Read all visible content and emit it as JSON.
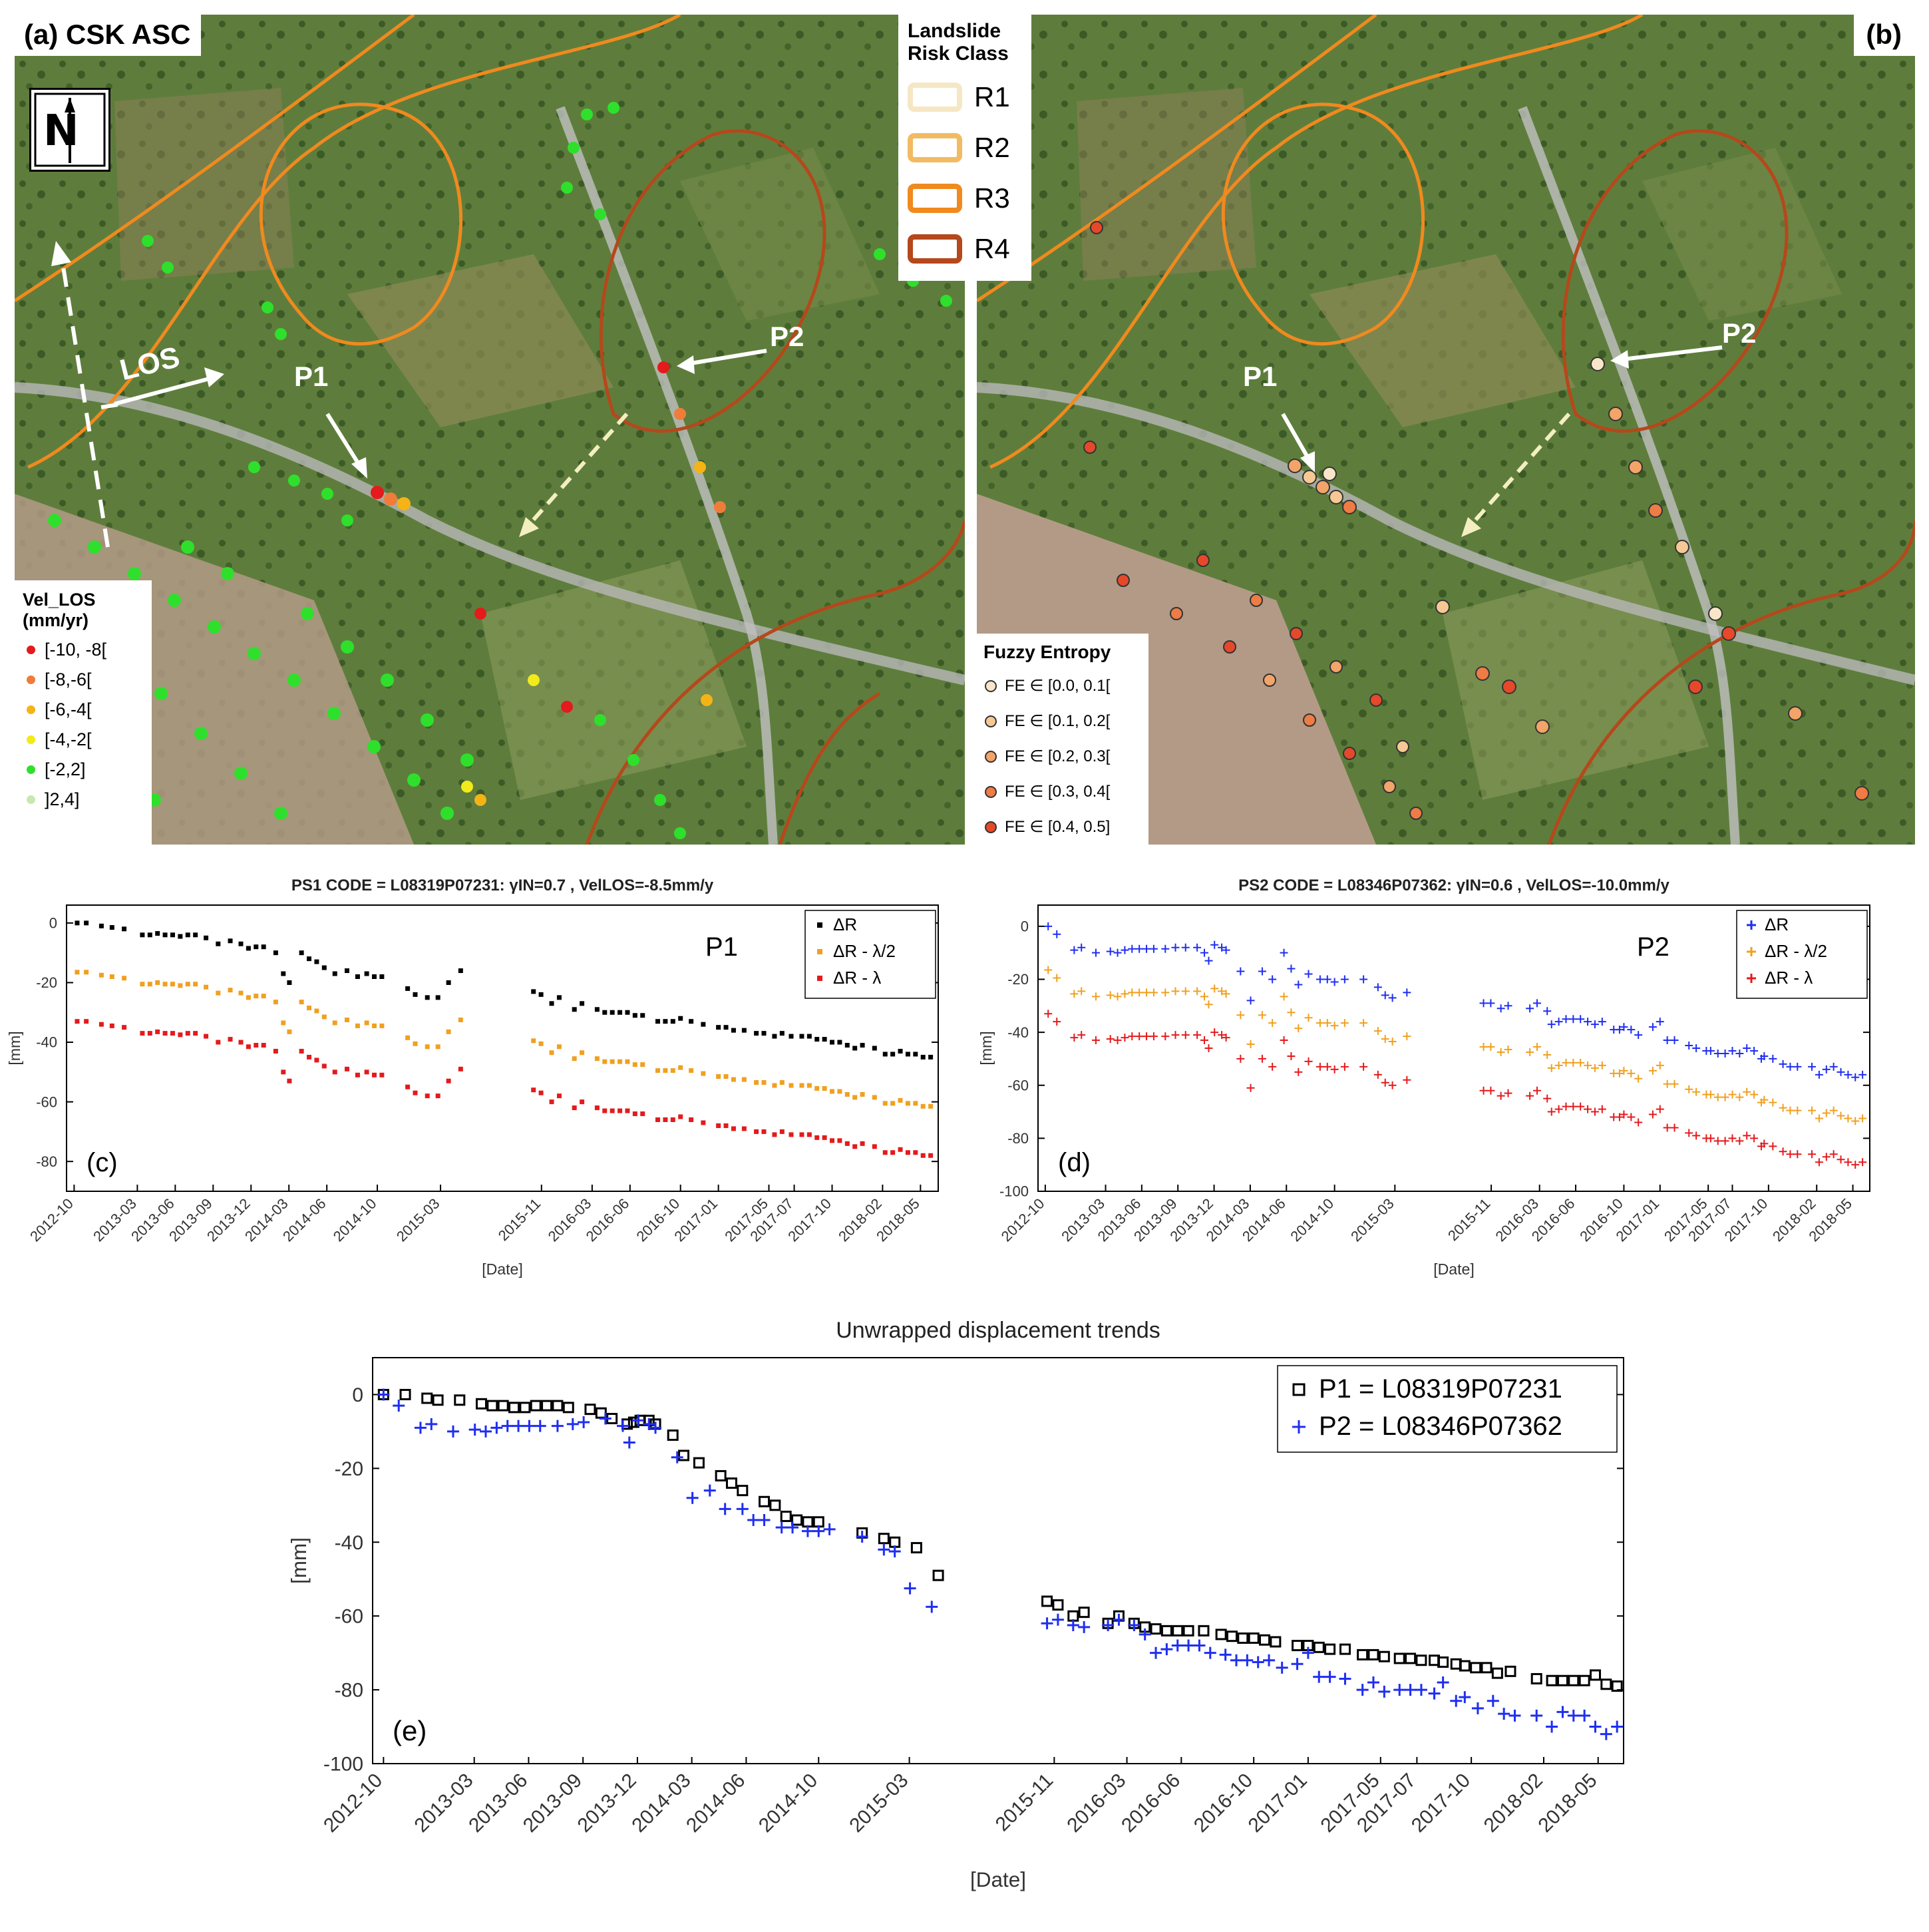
{
  "map_a": {
    "label": "(a) CSK ASC",
    "north": "N",
    "los": "LOS",
    "p1": "P1",
    "p2": "P2",
    "vel_title_1": "Vel_LOS",
    "vel_title_2": "(mm/yr)",
    "vel_legend": [
      {
        "label": "[-10, -8[",
        "color": "#e41a1c"
      },
      {
        "label": "[-8,-6[",
        "color": "#f07c3a"
      },
      {
        "label": "[-6,-4[",
        "color": "#f5b316"
      },
      {
        "label": "[-4,-2[",
        "color": "#f2ea1a"
      },
      {
        "label": "[-2,2]",
        "color": "#2ee02b"
      },
      {
        "label": "]2,4]",
        "color": "#c8e8b0"
      }
    ]
  },
  "map_b": {
    "label": "(b)",
    "p1": "P1",
    "p2": "P2",
    "fe_title": "Fuzzy Entropy",
    "fe_legend": [
      {
        "label": "FE ∈ [0.0, 0.1[",
        "color": "#f8e6c8"
      },
      {
        "label": "FE ∈ [0.1, 0.2[",
        "color": "#f6c994"
      },
      {
        "label": "FE ∈ [0.2, 0.3[",
        "color": "#f3a468"
      },
      {
        "label": "FE ∈ [0.3, 0.4[",
        "color": "#ee7c45"
      },
      {
        "label": "FE ∈ [0.4, 0.5]",
        "color": "#e5492a"
      }
    ]
  },
  "risk_legend": {
    "title_1": "Landslide",
    "title_2": "Risk Class",
    "items": [
      {
        "label": "R1",
        "color": "#f6e7c4"
      },
      {
        "label": "R2",
        "color": "#f2bb62"
      },
      {
        "label": "R3",
        "color": "#f08a1e"
      },
      {
        "label": "R4",
        "color": "#b5481c"
      }
    ]
  },
  "chart_data": [
    {
      "id": "c",
      "type": "scatter",
      "title": "PS1 CODE = L08319P07231:  γIN=0.7 , VelLOS=-8.5mm/y",
      "panel_label": "(c)",
      "point_label": "P1",
      "xlabel": "[Date]",
      "ylabel": "[mm]",
      "ylim": [
        -90,
        6
      ],
      "yticks": [
        "0",
        "-20",
        "-40",
        "-60",
        "-80"
      ],
      "xticks": [
        "2012-10",
        "2013-03",
        "2013-06",
        "2013-09",
        "2013-12",
        "2014-03",
        "2014-06",
        "2014-10",
        "2015-03",
        "2015-11",
        "2016-03",
        "2016-06",
        "2016-10",
        "2017-01",
        "2017-05",
        "2017-07",
        "2017-10",
        "2018-02",
        "2018-05"
      ],
      "xtick_dates": [
        2012.75,
        2013.167,
        2013.417,
        2013.667,
        2013.917,
        2014.167,
        2014.417,
        2014.75,
        2015.167,
        2015.833,
        2016.167,
        2016.417,
        2016.75,
        2017.0,
        2017.333,
        2017.5,
        2017.75,
        2018.083,
        2018.333
      ],
      "xlim": [
        2012.7,
        2018.45
      ],
      "marker": "square",
      "series": [
        {
          "name": "ΔR",
          "color": "#000000",
          "offset": 0
        },
        {
          "name": "ΔR - λ/2",
          "color": "#f0a020",
          "offset": -16.5
        },
        {
          "name": "ΔR - λ",
          "color": "#e41a1c",
          "offset": -33
        }
      ],
      "base": {
        "dates": [
          2012.77,
          2012.83,
          2012.93,
          2013.0,
          2013.08,
          2013.2,
          2013.25,
          2013.3,
          2013.35,
          2013.4,
          2013.45,
          2013.5,
          2013.55,
          2013.62,
          2013.7,
          2013.78,
          2013.85,
          2013.9,
          2013.95,
          2014.0,
          2014.08,
          2014.13,
          2014.17,
          2014.25,
          2014.3,
          2014.35,
          2014.4,
          2014.47,
          2014.55,
          2014.62,
          2014.68,
          2014.73,
          2014.78,
          2014.95,
          2015.0,
          2015.08,
          2015.15,
          2015.22,
          2015.3,
          2015.78,
          2015.83,
          2015.9,
          2015.95,
          2016.05,
          2016.1,
          2016.2,
          2016.25,
          2016.3,
          2016.35,
          2016.4,
          2016.45,
          2016.5,
          2016.6,
          2016.65,
          2016.7,
          2016.75,
          2016.82,
          2016.9,
          2017.0,
          2017.05,
          2017.1,
          2017.17,
          2017.25,
          2017.3,
          2017.37,
          2017.42,
          2017.48,
          2017.55,
          2017.6,
          2017.65,
          2017.7,
          2017.75,
          2017.8,
          2017.85,
          2017.9,
          2017.95,
          2018.03,
          2018.1,
          2018.15,
          2018.2,
          2018.25,
          2018.3,
          2018.35,
          2018.4
        ],
        "values": [
          0,
          0,
          -1,
          -1.5,
          -2,
          -4,
          -4,
          -3.5,
          -4,
          -4,
          -4.5,
          -4,
          -4,
          -5,
          -7,
          -6,
          -7,
          -8.5,
          -8,
          -8,
          -10,
          -17,
          -20,
          -10,
          -12,
          -13,
          -15,
          -17,
          -16,
          -18,
          -17,
          -18,
          -18,
          -22,
          -24,
          -25,
          -25,
          -20,
          -16,
          -23,
          -24,
          -27,
          -25,
          -29,
          -27,
          -29,
          -30,
          -30,
          -30,
          -30,
          -31,
          -31,
          -33,
          -33,
          -33,
          -32,
          -33,
          -34,
          -35,
          -35,
          -36,
          -36,
          -37,
          -37,
          -38,
          -37,
          -38,
          -38,
          -38,
          -39,
          -39,
          -40,
          -40,
          -41,
          -42,
          -41,
          -42,
          -44,
          -44,
          -43,
          -44,
          -44,
          -45,
          -45
        ]
      }
    },
    {
      "id": "d",
      "type": "scatter",
      "title": "PS2 CODE = L08346P07362:  γIN=0.6 , VelLOS=-10.0mm/y",
      "panel_label": "(d)",
      "point_label": "P2",
      "xlabel": "[Date]",
      "ylabel": "[mm]",
      "ylim": [
        -100,
        8
      ],
      "yticks": [
        "0",
        "-20",
        "-40",
        "-60",
        "-80",
        "-100"
      ],
      "xticks": [
        "2012-10",
        "2013-03",
        "2013-06",
        "2013-09",
        "2013-12",
        "2014-03",
        "2014-06",
        "2014-10",
        "2015-03",
        "2015-11",
        "2016-03",
        "2016-06",
        "2016-10",
        "2017-01",
        "2017-05",
        "2017-07",
        "2017-10",
        "2018-02",
        "2018-05"
      ],
      "xtick_dates": [
        2012.75,
        2013.167,
        2013.417,
        2013.667,
        2013.917,
        2014.167,
        2014.417,
        2014.75,
        2015.167,
        2015.833,
        2016.167,
        2016.417,
        2016.75,
        2017.0,
        2017.333,
        2017.5,
        2017.75,
        2018.083,
        2018.333
      ],
      "xlim": [
        2012.7,
        2018.45
      ],
      "marker": "plus",
      "series": [
        {
          "name": "ΔR",
          "color": "#1f2ef0",
          "offset": 0
        },
        {
          "name": "ΔR - λ/2",
          "color": "#f0a020",
          "offset": -16.5
        },
        {
          "name": "ΔR - λ",
          "color": "#e41a1c",
          "offset": -33
        }
      ],
      "base": {
        "dates": [
          2012.77,
          2012.83,
          2012.95,
          2013.0,
          2013.1,
          2013.2,
          2013.25,
          2013.3,
          2013.35,
          2013.4,
          2013.45,
          2013.5,
          2013.58,
          2013.65,
          2013.72,
          2013.8,
          2013.85,
          2013.88,
          2013.92,
          2013.97,
          2014.0,
          2014.1,
          2014.17,
          2014.25,
          2014.32,
          2014.4,
          2014.45,
          2014.5,
          2014.57,
          2014.65,
          2014.7,
          2014.75,
          2014.82,
          2014.95,
          2015.05,
          2015.1,
          2015.15,
          2015.25,
          2015.78,
          2015.83,
          2015.9,
          2015.95,
          2016.1,
          2016.15,
          2016.22,
          2016.25,
          2016.3,
          2016.35,
          2016.4,
          2016.45,
          2016.5,
          2016.55,
          2016.6,
          2016.68,
          2016.72,
          2016.75,
          2016.8,
          2016.85,
          2016.95,
          2017.0,
          2017.05,
          2017.1,
          2017.2,
          2017.25,
          2017.32,
          2017.35,
          2017.4,
          2017.45,
          2017.5,
          2017.55,
          2017.6,
          2017.65,
          2017.7,
          2017.72,
          2017.78,
          2017.85,
          2017.9,
          2017.95,
          2018.05,
          2018.1,
          2018.15,
          2018.2,
          2018.25,
          2018.3,
          2018.35,
          2018.4
        ],
        "values": [
          0,
          -3,
          -9,
          -8,
          -10,
          -9.5,
          -10,
          -9,
          -8.5,
          -8.5,
          -8.5,
          -8.5,
          -8.5,
          -8,
          -8,
          -8,
          -10,
          -13,
          -7,
          -8,
          -9,
          -17,
          -28,
          -17,
          -20,
          -10,
          -16,
          -22,
          -18,
          -20,
          -20,
          -21,
          -20,
          -20,
          -23,
          -26,
          -27,
          -25,
          -29,
          -29,
          -31,
          -30,
          -31,
          -29,
          -32,
          -37,
          -36,
          -35,
          -35,
          -35,
          -36,
          -37,
          -36,
          -39,
          -39,
          -38,
          -39,
          -41,
          -38,
          -36,
          -43,
          -43,
          -45,
          -46,
          -47,
          -47,
          -48,
          -48,
          -47,
          -48,
          -46,
          -47,
          -50,
          -49,
          -50,
          -52,
          -53,
          -53,
          -53,
          -56,
          -54,
          -53,
          -55,
          -56,
          -57,
          -56
        ]
      }
    },
    {
      "id": "e",
      "type": "scatter",
      "title": "Unwrapped displacement trends",
      "panel_label": "(e)",
      "xlabel": "[Date]",
      "ylabel": "[mm]",
      "ylim": [
        -100,
        10
      ],
      "yticks": [
        "0",
        "-20",
        "-40",
        "-60",
        "-80",
        "-100"
      ],
      "xticks": [
        "2012-10",
        "2013-03",
        "2013-06",
        "2013-09",
        "2013-12",
        "2014-03",
        "2014-06",
        "2014-10",
        "2015-03",
        "2015-11",
        "2016-03",
        "2016-06",
        "2016-10",
        "2017-01",
        "2017-05",
        "2017-07",
        "2017-10",
        "2018-02",
        "2018-05"
      ],
      "xtick_dates": [
        2012.75,
        2013.167,
        2013.417,
        2013.667,
        2013.917,
        2014.167,
        2014.417,
        2014.75,
        2015.167,
        2015.833,
        2016.167,
        2016.417,
        2016.75,
        2017.0,
        2017.333,
        2017.5,
        2017.75,
        2018.083,
        2018.333
      ],
      "xlim": [
        2012.7,
        2018.45
      ],
      "series": [
        {
          "name": "P1 = L08319P07231",
          "marker": "square",
          "color": "#000000",
          "dates": [
            2012.75,
            2012.85,
            2012.95,
            2013.0,
            2013.1,
            2013.2,
            2013.25,
            2013.3,
            2013.35,
            2013.4,
            2013.45,
            2013.5,
            2013.55,
            2013.6,
            2013.7,
            2013.75,
            2013.8,
            2013.87,
            2013.9,
            2013.93,
            2013.97,
            2014.0,
            2014.08,
            2014.13,
            2014.2,
            2014.3,
            2014.35,
            2014.4,
            2014.5,
            2014.55,
            2014.6,
            2014.65,
            2014.7,
            2014.75,
            2014.95,
            2015.05,
            2015.1,
            2015.2,
            2015.3,
            2015.8,
            2015.85,
            2015.92,
            2015.97,
            2016.08,
            2016.13,
            2016.2,
            2016.25,
            2016.3,
            2016.35,
            2016.4,
            2016.45,
            2016.52,
            2016.6,
            2016.65,
            2016.7,
            2016.75,
            2016.8,
            2016.85,
            2016.95,
            2017.0,
            2017.05,
            2017.1,
            2017.17,
            2017.25,
            2017.3,
            2017.35,
            2017.42,
            2017.47,
            2017.52,
            2017.58,
            2017.62,
            2017.68,
            2017.72,
            2017.77,
            2017.82,
            2017.87,
            2017.93,
            2018.05,
            2018.12,
            2018.17,
            2018.22,
            2018.27,
            2018.32,
            2018.37,
            2018.42
          ],
          "values": [
            0,
            0,
            -1,
            -1.5,
            -1.5,
            -2.5,
            -3,
            -3,
            -3.5,
            -3.5,
            -3,
            -3,
            -3,
            -3.5,
            -4,
            -5,
            -6.5,
            -8,
            -7.5,
            -7,
            -7,
            -8,
            -11,
            -16.5,
            -18.5,
            -22,
            -24,
            -26,
            -29,
            -30,
            -33,
            -34,
            -34.5,
            -34.5,
            -37.5,
            -39,
            -40,
            -41.5,
            -49,
            -56,
            -57,
            -60,
            -59,
            -62,
            -60,
            -62,
            -63,
            -63.5,
            -64,
            -64,
            -64,
            -64,
            -65,
            -65.5,
            -66,
            -66,
            -66.5,
            -67,
            -68,
            -68,
            -68.5,
            -69,
            -69,
            -70.5,
            -70.5,
            -71,
            -71.5,
            -71.5,
            -72,
            -72,
            -72.5,
            -73,
            -73.5,
            -74,
            -74,
            -75.5,
            -75,
            -77,
            -77.5,
            -77.5,
            -77.5,
            -77.5,
            -76,
            -78.5,
            -79
          ]
        },
        {
          "name": "P2 = L08346P07362",
          "marker": "plus",
          "color": "#1f2ef0",
          "dates": [
            2012.75,
            2012.82,
            2012.92,
            2012.97,
            2013.07,
            2013.17,
            2013.22,
            2013.27,
            2013.32,
            2013.37,
            2013.42,
            2013.47,
            2013.55,
            2013.62,
            2013.67,
            2013.77,
            2013.85,
            2013.88,
            2013.92,
            2013.97,
            2014.0,
            2014.1,
            2014.17,
            2014.25,
            2014.32,
            2014.4,
            2014.45,
            2014.5,
            2014.58,
            2014.63,
            2014.7,
            2014.75,
            2014.8,
            2014.95,
            2015.05,
            2015.1,
            2015.17,
            2015.27,
            2015.8,
            2015.85,
            2015.92,
            2015.97,
            2016.08,
            2016.13,
            2016.2,
            2016.25,
            2016.3,
            2016.35,
            2016.4,
            2016.45,
            2016.5,
            2016.55,
            2016.62,
            2016.67,
            2016.72,
            2016.77,
            2016.82,
            2016.88,
            2016.95,
            2017.0,
            2017.05,
            2017.1,
            2017.17,
            2017.25,
            2017.3,
            2017.35,
            2017.42,
            2017.47,
            2017.52,
            2017.58,
            2017.62,
            2017.68,
            2017.72,
            2017.78,
            2017.85,
            2017.9,
            2017.95,
            2018.05,
            2018.12,
            2018.17,
            2018.22,
            2018.27,
            2018.32,
            2018.37,
            2018.42
          ],
          "values": [
            0,
            -3,
            -9,
            -8,
            -10,
            -9.5,
            -10,
            -9,
            -8.5,
            -8.5,
            -8.5,
            -8.5,
            -8.5,
            -8,
            -7.5,
            -6.5,
            -8.5,
            -13,
            -7,
            -8,
            -9,
            -17,
            -28,
            -26,
            -31,
            -31,
            -34,
            -34,
            -36,
            -36,
            -37,
            -37,
            -36.5,
            -38.5,
            -42,
            -42.5,
            -52.5,
            -57.5,
            -62,
            -61,
            -62.5,
            -63,
            -62.5,
            -61,
            -62.5,
            -65,
            -70,
            -69,
            -68,
            -68,
            -68,
            -70,
            -70.5,
            -72,
            -72,
            -72.5,
            -72,
            -74,
            -73,
            -70,
            -76.5,
            -76.5,
            -77,
            -80,
            -78,
            -80.5,
            -80,
            -80,
            -80,
            -81,
            -78,
            -83,
            -82,
            -85,
            -83,
            -86.5,
            -87,
            -87,
            -90,
            -86,
            -87,
            -87,
            -90,
            -92,
            -90
          ]
        }
      ]
    }
  ]
}
